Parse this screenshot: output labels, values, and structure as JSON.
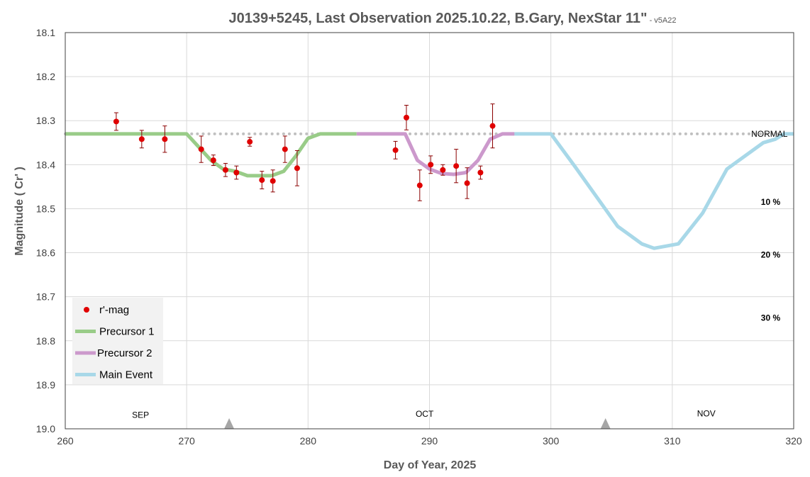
{
  "chart_data": {
    "type": "line",
    "title": "J0139+5245, Last Observation 2025.10.22, B.Gary, NexStar 11\"",
    "title_suffix": " - v5A22",
    "xlabel": "Day of Year, 2025",
    "ylabel": "Magnitude ( Cr' )",
    "xlim": [
      260,
      320
    ],
    "ylim": [
      18.1,
      19.0
    ],
    "y_inverted": true,
    "grid": true,
    "x_ticks": [
      260,
      270,
      280,
      290,
      300,
      310,
      320
    ],
    "x_tick_labels": [
      "260",
      "270",
      "280",
      "290",
      "300",
      "310",
      "320"
    ],
    "y_ticks": [
      18.1,
      18.2,
      18.3,
      18.4,
      18.5,
      18.6,
      18.7,
      18.8,
      18.9,
      19.0
    ],
    "y_tick_labels": [
      "18.1",
      "18.2",
      "18.3",
      "18.4",
      "18.5",
      "18.6",
      "18.7",
      "18.8",
      "18.9",
      "19.0"
    ],
    "legend_position": "bottom-left",
    "legend": [
      "r'-mag",
      "Precursor 1",
      "Precursor 2",
      "Main Event"
    ],
    "colors": {
      "points": "#e00000",
      "error_bars": "#8b0000",
      "precursor1": "#99cc88",
      "precursor2": "#cc99cc",
      "main_event": "#a8d8e8",
      "normal_line": "#c0c0c0",
      "grid": "#d9d9d9",
      "markers": "#a6a6a6"
    },
    "points": [
      {
        "x": 264.2,
        "y": 18.302,
        "err": 0.02
      },
      {
        "x": 266.3,
        "y": 18.342,
        "err": 0.02
      },
      {
        "x": 268.2,
        "y": 18.342,
        "err": 0.03
      },
      {
        "x": 271.2,
        "y": 18.365,
        "err": 0.03
      },
      {
        "x": 272.2,
        "y": 18.39,
        "err": 0.012
      },
      {
        "x": 273.2,
        "y": 18.412,
        "err": 0.015
      },
      {
        "x": 274.1,
        "y": 18.418,
        "err": 0.015
      },
      {
        "x": 275.2,
        "y": 18.348,
        "err": 0.01
      },
      {
        "x": 276.2,
        "y": 18.435,
        "err": 0.02
      },
      {
        "x": 277.1,
        "y": 18.437,
        "err": 0.025
      },
      {
        "x": 278.1,
        "y": 18.365,
        "err": 0.03
      },
      {
        "x": 279.1,
        "y": 18.408,
        "err": 0.04
      },
      {
        "x": 287.2,
        "y": 18.367,
        "err": 0.02
      },
      {
        "x": 288.1,
        "y": 18.293,
        "err": 0.028
      },
      {
        "x": 289.2,
        "y": 18.447,
        "err": 0.035
      },
      {
        "x": 290.1,
        "y": 18.4,
        "err": 0.02
      },
      {
        "x": 291.1,
        "y": 18.412,
        "err": 0.012
      },
      {
        "x": 292.2,
        "y": 18.403,
        "err": 0.038
      },
      {
        "x": 293.1,
        "y": 18.442,
        "err": 0.035
      },
      {
        "x": 294.2,
        "y": 18.418,
        "err": 0.015
      },
      {
        "x": 295.2,
        "y": 18.312,
        "err": 0.05
      }
    ],
    "series": [
      {
        "name": "Precursor 1",
        "color": "#99cc88",
        "x": [
          260,
          270,
          271,
          272,
          273,
          274,
          275,
          276,
          277,
          278,
          279,
          280,
          281,
          282,
          284
        ],
        "y": [
          18.33,
          18.33,
          18.36,
          18.39,
          18.41,
          18.415,
          18.425,
          18.425,
          18.425,
          18.415,
          18.38,
          18.34,
          18.33,
          18.33,
          18.33
        ]
      },
      {
        "name": "Precursor 2",
        "color": "#cc99cc",
        "x": [
          284,
          288,
          289,
          290,
          291,
          292,
          293,
          294,
          295,
          296,
          297
        ],
        "y": [
          18.33,
          18.33,
          18.39,
          18.41,
          18.42,
          18.422,
          18.418,
          18.39,
          18.342,
          18.33,
          18.33
        ]
      },
      {
        "name": "Main Event",
        "color": "#a8d8e8",
        "x": [
          297,
          300,
          302,
          305.5,
          307.5,
          308.5,
          310.5,
          312.5,
          314.5,
          317.5,
          318.5,
          319.2,
          320
        ],
        "y": [
          18.33,
          18.33,
          18.405,
          18.54,
          18.58,
          18.59,
          18.58,
          18.51,
          18.41,
          18.35,
          18.342,
          18.33,
          18.33
        ]
      }
    ],
    "normal_level": 18.33,
    "annotations": [
      {
        "text": "NORMAL",
        "x": 316.5,
        "y": 18.33,
        "bold": false
      },
      {
        "text": "10 %",
        "x": 317.3,
        "y": 18.485,
        "bold": true
      },
      {
        "text": "20 %",
        "x": 317.3,
        "y": 18.605,
        "bold": true
      },
      {
        "text": "30 %",
        "x": 317.3,
        "y": 18.748,
        "bold": true
      }
    ],
    "months": [
      {
        "label": "SEP",
        "x": 266.2,
        "y": 18.975
      },
      {
        "label": "OCT",
        "x": 289.6,
        "y": 18.973
      },
      {
        "label": "NOV",
        "x": 312.8,
        "y": 18.972
      }
    ],
    "markers": [
      273.5,
      304.5
    ]
  }
}
